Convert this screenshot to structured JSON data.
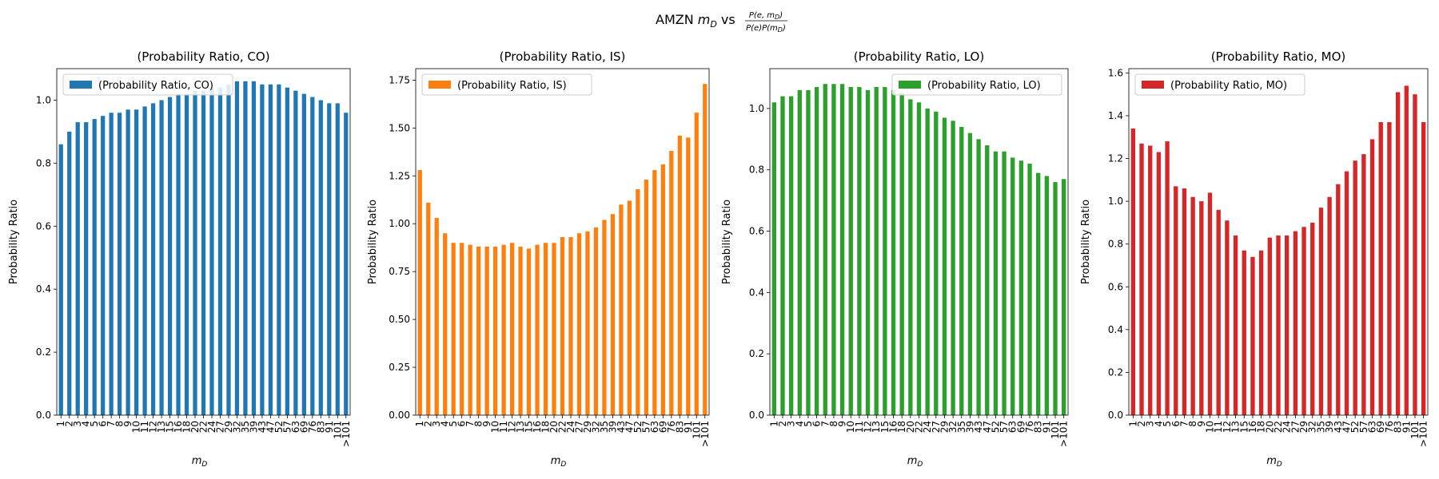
{
  "figure": {
    "suptitle_prefix": "AMZN ",
    "suptitle_m": "m",
    "suptitle_sub": "D",
    "suptitle_vs": " vs ",
    "frac_num_prefix": "P(e, m",
    "frac_num_suffix": ")",
    "frac_den_prefix": "P(e)P(m",
    "frac_den_suffix": ")"
  },
  "chart_data": [
    {
      "type": "bar",
      "title": "(Probability Ratio, CO)",
      "xlabel_main": "m",
      "xlabel_sub": "D",
      "ylabel": "Probability Ratio",
      "legend": "top-left",
      "color": "#1f77b4",
      "ylim": [
        0,
        1.1
      ],
      "yticks": [
        "0.0",
        "0.2",
        "0.4",
        "0.6",
        "0.8",
        "1.0"
      ],
      "categories": [
        "1",
        "2",
        "3",
        "4",
        "5",
        "6",
        "7",
        "8",
        "9",
        "10",
        "11",
        "12",
        "13",
        "15",
        "16",
        "18",
        "20",
        "22",
        "24",
        "27",
        "29",
        "32",
        "35",
        "39",
        "43",
        "47",
        "52",
        "57",
        "63",
        "69",
        "76",
        "83",
        "91",
        "101",
        ">101"
      ],
      "series": [
        {
          "name": "(Probability Ratio, CO)",
          "values": [
            0.86,
            0.9,
            0.93,
            0.93,
            0.94,
            0.95,
            0.96,
            0.96,
            0.97,
            0.97,
            0.98,
            0.99,
            1.0,
            1.01,
            1.02,
            1.02,
            1.03,
            1.03,
            1.04,
            1.04,
            1.05,
            1.06,
            1.06,
            1.06,
            1.05,
            1.05,
            1.05,
            1.04,
            1.03,
            1.02,
            1.01,
            1.0,
            0.99,
            0.99,
            0.96
          ]
        }
      ]
    },
    {
      "type": "bar",
      "title": "(Probability Ratio, IS)",
      "xlabel_main": "m",
      "xlabel_sub": "D",
      "ylabel": "Probability Ratio",
      "legend": "top-left",
      "color": "#ff7f0e",
      "ylim": [
        0,
        1.81
      ],
      "yticks": [
        "0.00",
        "0.25",
        "0.50",
        "0.75",
        "1.00",
        "1.25",
        "1.50",
        "1.75"
      ],
      "categories": [
        "1",
        "2",
        "3",
        "4",
        "5",
        "6",
        "7",
        "8",
        "9",
        "10",
        "11",
        "12",
        "13",
        "15",
        "16",
        "18",
        "20",
        "22",
        "24",
        "27",
        "29",
        "32",
        "35",
        "39",
        "43",
        "47",
        "52",
        "57",
        "63",
        "69",
        "76",
        "83",
        "91",
        "101",
        ">101"
      ],
      "series": [
        {
          "name": "(Probability Ratio, IS)",
          "values": [
            1.28,
            1.11,
            1.03,
            0.95,
            0.9,
            0.9,
            0.89,
            0.88,
            0.88,
            0.88,
            0.89,
            0.9,
            0.88,
            0.87,
            0.89,
            0.9,
            0.9,
            0.93,
            0.93,
            0.95,
            0.96,
            0.98,
            1.02,
            1.05,
            1.1,
            1.12,
            1.18,
            1.23,
            1.28,
            1.31,
            1.38,
            1.46,
            1.45,
            1.58,
            1.73
          ]
        }
      ]
    },
    {
      "type": "bar",
      "title": "(Probability Ratio, LO)",
      "xlabel_main": "m",
      "xlabel_sub": "D",
      "ylabel": "Probability Ratio",
      "legend": "top-right",
      "color": "#2ca02c",
      "ylim": [
        0,
        1.13
      ],
      "yticks": [
        "0.0",
        "0.2",
        "0.4",
        "0.6",
        "0.8",
        "1.0"
      ],
      "categories": [
        "1",
        "2",
        "3",
        "4",
        "5",
        "6",
        "7",
        "8",
        "9",
        "10",
        "11",
        "12",
        "13",
        "15",
        "16",
        "18",
        "20",
        "22",
        "24",
        "27",
        "29",
        "32",
        "35",
        "39",
        "43",
        "47",
        "52",
        "57",
        "63",
        "69",
        "76",
        "83",
        "91",
        "101",
        ">101"
      ],
      "series": [
        {
          "name": "(Probability Ratio, LO)",
          "values": [
            1.02,
            1.04,
            1.04,
            1.06,
            1.06,
            1.07,
            1.08,
            1.08,
            1.08,
            1.07,
            1.07,
            1.06,
            1.07,
            1.07,
            1.06,
            1.05,
            1.03,
            1.02,
            1.0,
            0.99,
            0.97,
            0.96,
            0.94,
            0.92,
            0.9,
            0.88,
            0.86,
            0.86,
            0.84,
            0.83,
            0.82,
            0.79,
            0.78,
            0.76,
            0.77
          ]
        }
      ]
    },
    {
      "type": "bar",
      "title": "(Probability Ratio, MO)",
      "xlabel_main": "m",
      "xlabel_sub": "D",
      "ylabel": "Probability Ratio",
      "legend": "top-left",
      "color": "#d62728",
      "ylim": [
        0,
        1.62
      ],
      "yticks": [
        "0.0",
        "0.2",
        "0.4",
        "0.6",
        "0.8",
        "1.0",
        "1.2",
        "1.4",
        "1.6"
      ],
      "categories": [
        "1",
        "2",
        "3",
        "4",
        "5",
        "6",
        "7",
        "8",
        "9",
        "10",
        "11",
        "12",
        "13",
        "15",
        "16",
        "18",
        "20",
        "22",
        "24",
        "27",
        "29",
        "32",
        "35",
        "39",
        "43",
        "47",
        "52",
        "57",
        "63",
        "69",
        "76",
        "83",
        "91",
        "101",
        ">101"
      ],
      "series": [
        {
          "name": "(Probability Ratio, MO)",
          "values": [
            1.34,
            1.27,
            1.26,
            1.23,
            1.28,
            1.07,
            1.06,
            1.02,
            1.0,
            1.04,
            0.96,
            0.91,
            0.84,
            0.77,
            0.74,
            0.77,
            0.83,
            0.84,
            0.84,
            0.86,
            0.88,
            0.9,
            0.97,
            1.02,
            1.08,
            1.14,
            1.19,
            1.22,
            1.29,
            1.37,
            1.37,
            1.51,
            1.54,
            1.5,
            1.37
          ]
        }
      ]
    }
  ]
}
